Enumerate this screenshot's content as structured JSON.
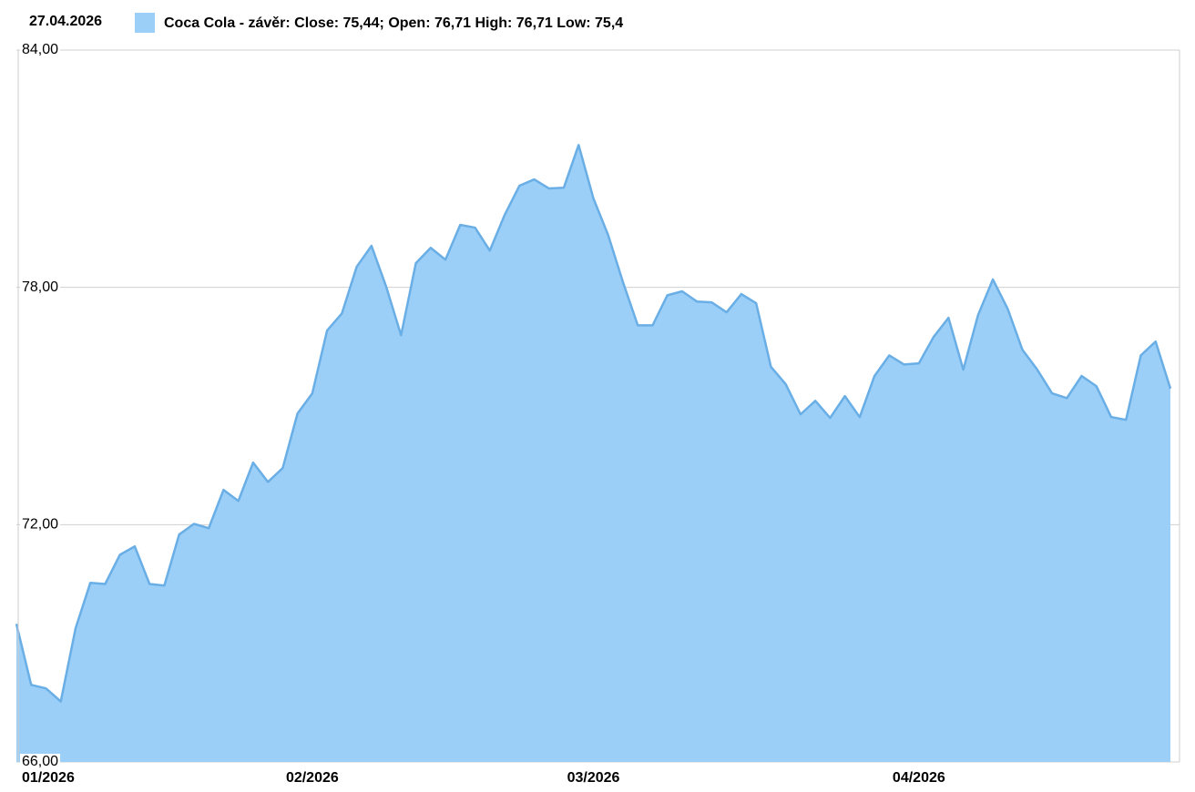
{
  "chart_data": {
    "type": "area",
    "date": "27.04.2026",
    "series": [
      {
        "name": "Coca Cola - závěr: Close: 75,44; Open: 76,71 High: 76,71 Low: 75,4",
        "color": "#9bcff7",
        "line_color": "#6aaee6",
        "values": [
          69.49,
          67.95,
          67.86,
          67.53,
          69.38,
          70.53,
          70.5,
          71.24,
          71.45,
          70.5,
          70.46,
          71.75,
          72.02,
          71.91,
          72.88,
          72.6,
          73.57,
          73.08,
          73.43,
          74.81,
          75.32,
          76.91,
          77.34,
          78.52,
          79.05,
          78.01,
          76.79,
          78.61,
          79.0,
          78.7,
          79.58,
          79.51,
          78.93,
          79.83,
          80.57,
          80.73,
          80.5,
          80.52,
          81.6,
          80.25,
          79.32,
          78.13,
          77.04,
          77.04,
          77.8,
          77.9,
          77.64,
          77.62,
          77.37,
          77.83,
          77.6,
          75.99,
          75.55,
          74.79,
          75.13,
          74.7,
          75.25,
          74.72,
          75.76,
          76.28,
          76.05,
          76.08,
          76.75,
          77.23,
          75.92,
          77.3,
          78.2,
          77.46,
          76.42,
          75.92,
          75.32,
          75.2,
          75.76,
          75.5,
          74.72,
          74.65,
          76.28,
          76.63,
          75.44
        ]
      }
    ],
    "categories": [
      "01/2026",
      null,
      null,
      null,
      null,
      null,
      null,
      null,
      null,
      null,
      null,
      null,
      null,
      null,
      null,
      null,
      null,
      null,
      null,
      null,
      "02/2026",
      null,
      null,
      null,
      null,
      null,
      null,
      null,
      null,
      null,
      null,
      null,
      null,
      null,
      null,
      null,
      null,
      null,
      null,
      "03/2026",
      null,
      null,
      null,
      null,
      null,
      null,
      null,
      null,
      null,
      null,
      null,
      null,
      null,
      null,
      null,
      null,
      null,
      null,
      null,
      null,
      null,
      "04/2026",
      null,
      null,
      null,
      null,
      null,
      null,
      null,
      null,
      null,
      null,
      null,
      null,
      null,
      null,
      null,
      null,
      null
    ],
    "ylim": [
      66,
      84
    ],
    "yticks": [
      {
        "value": 66,
        "label": "66,00"
      },
      {
        "value": 72,
        "label": "72,00"
      },
      {
        "value": 78,
        "label": "78,00"
      },
      {
        "value": 84,
        "label": "84,00"
      }
    ],
    "grid": true
  }
}
